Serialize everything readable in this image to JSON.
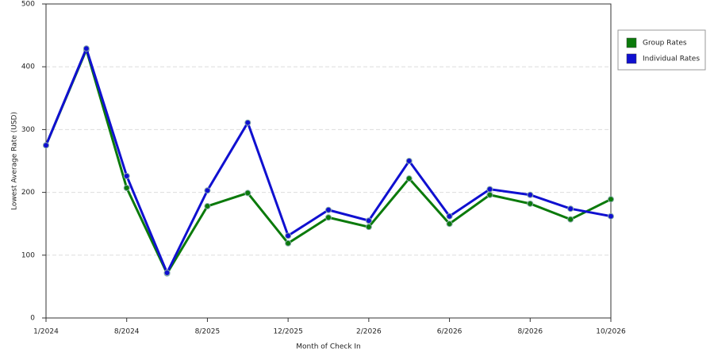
{
  "chart_data": {
    "type": "line",
    "x_label": "Month of Check In",
    "y_label": "Lowest Average Rate (USD)",
    "categories": [
      "1/2024",
      null,
      "8/2024",
      null,
      "8/2025",
      null,
      "12/2025",
      null,
      "2/2026",
      null,
      "6/2026",
      null,
      "8/2026",
      null,
      "10/2026"
    ],
    "series": [
      {
        "name": "Group Rates",
        "color": "#0b7a0b",
        "values": [
          275,
          427,
          207,
          71,
          178,
          199,
          119,
          160,
          145,
          222,
          150,
          196,
          182,
          157,
          189
        ]
      },
      {
        "name": "Individual Rates",
        "color": "#1010d0",
        "values": [
          275,
          429,
          226,
          72,
          203,
          311,
          131,
          172,
          155,
          250,
          162,
          205,
          196,
          174,
          162
        ]
      }
    ],
    "ylim": [
      0,
      500
    ],
    "yticks": [
      0,
      100,
      200,
      300,
      400,
      500
    ],
    "grid": true
  }
}
